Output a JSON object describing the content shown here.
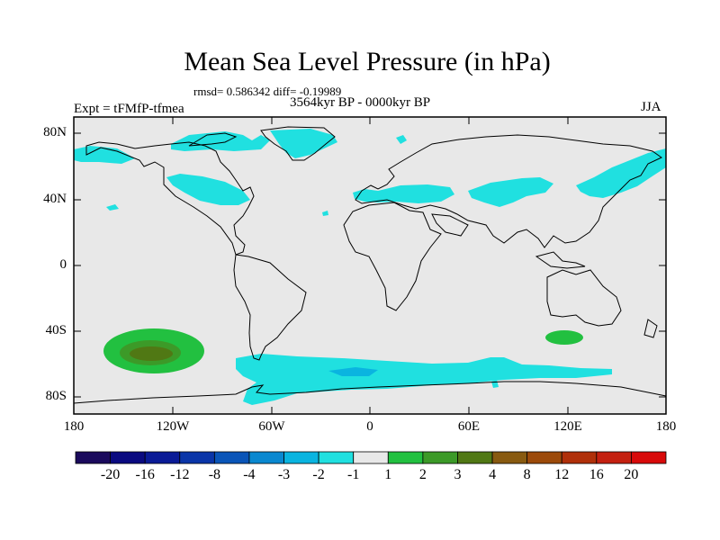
{
  "map": {
    "title": "Mean Sea Level Pressure (in hPa)",
    "stats_line": "rmsd= 0.586342 diff= -0.19989",
    "period": "3564kyr BP - 0000kyr BP",
    "experiment": "Expt = tFMfP-tfmea",
    "season": "JJA",
    "lat_labels": [
      "80N",
      "40N",
      "0",
      "40S",
      "80S"
    ],
    "lon_labels": [
      "180",
      "120W",
      "60W",
      "0",
      "60E",
      "120E",
      "180"
    ]
  },
  "colorbar": {
    "labels": [
      "-20",
      "-16",
      "-12",
      "-8",
      "-4",
      "-3",
      "-2",
      "-1",
      "1",
      "2",
      "3",
      "4",
      "8",
      "12",
      "16",
      "20"
    ],
    "colors": [
      "#1a0a5c",
      "#0a0a80",
      "#0a1a96",
      "#0a35a8",
      "#0a55b8",
      "#0a88d0",
      "#0ab4e0",
      "#20e0e0",
      "#e8e8e8",
      "#22c040",
      "#3c9a28",
      "#507814",
      "#885a10",
      "#9c4a0a",
      "#b0300a",
      "#c42010",
      "#d80a0a"
    ]
  }
}
